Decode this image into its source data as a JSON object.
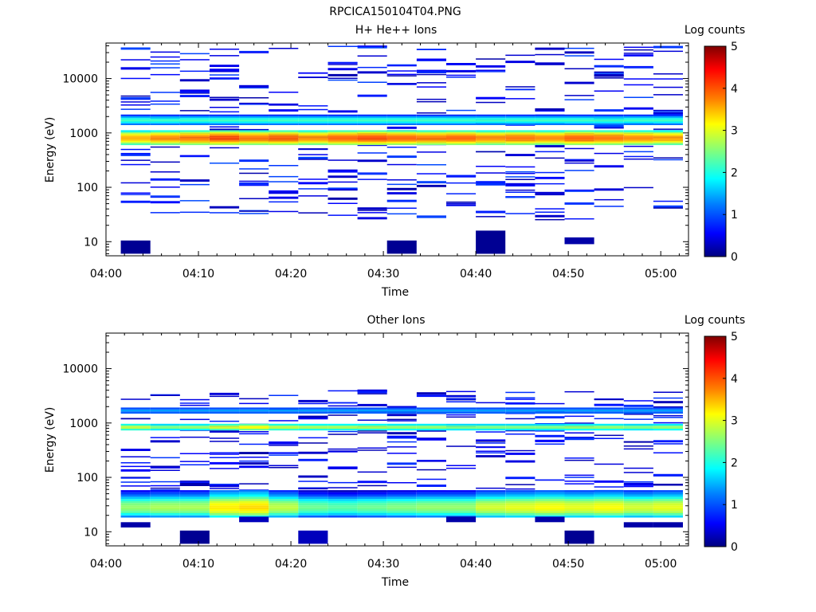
{
  "figure": {
    "title": "RPCICA150104T04.PNG"
  },
  "colormap": {
    "stops": [
      "#00007f",
      "#0000ff",
      "#007fff",
      "#00ffff",
      "#7fff7f",
      "#ffff00",
      "#ff7f00",
      "#ff0000",
      "#7f0000"
    ]
  },
  "chart_data": [
    {
      "type": "heatmap",
      "title": "H+ He++ Ions",
      "xlabel": "Time",
      "ylabel": "Energy (eV)",
      "colorbar_label": "Log counts",
      "colorbar_ticks": [
        "0",
        "1",
        "2",
        "3",
        "4",
        "5"
      ],
      "x_ticks": [
        "04:00",
        "04:10",
        "04:20",
        "04:30",
        "04:40",
        "04:50",
        "05:00"
      ],
      "y_ticks": [
        "10",
        "100",
        "1000",
        "10000"
      ],
      "y_scale": "log",
      "ylim": [
        5.5,
        45000
      ],
      "xlim_minutes": [
        0,
        63
      ],
      "clim": [
        0,
        5
      ],
      "time_bins_start_min": [
        1.6,
        4.8,
        8.0,
        11.2,
        14.4,
        17.6,
        20.8,
        24.0,
        27.2,
        30.4,
        33.6,
        36.8,
        40.0,
        43.2,
        46.4,
        49.6,
        52.8,
        56.0,
        59.2
      ],
      "time_bin_width_min": 3.2,
      "band": {
        "energies": [
          620,
          660,
          700,
          740,
          790,
          840,
          890,
          950,
          1010,
          1080
        ],
        "profile": [
          2.4,
          2.9,
          3.3,
          3.6,
          3.7,
          3.7,
          3.5,
          3.2,
          2.7,
          2.0
        ],
        "column_shift": [
          -0.2,
          0.0,
          0.1,
          0.3,
          0.1,
          0.2,
          0.0,
          0.2,
          0.3,
          0.2,
          0.1,
          0.2,
          0.0,
          0.1,
          0.0,
          0.2,
          0.1,
          0.0,
          -0.1
        ]
      },
      "secondary_band": {
        "energies": [
          1450,
          1560,
          1680,
          1800,
          1950,
          2100
        ],
        "profile": [
          1.2,
          1.8,
          2.2,
          2.0,
          1.5,
          0.9
        ]
      },
      "sparse": {
        "emin": 25,
        "emax": 40000,
        "count_per_bin": 22,
        "vmin": 0.2,
        "vmax": 1.0,
        "seed": 104
      },
      "blocks": [
        {
          "bin": 0,
          "e_lo": 6,
          "e_hi": 10.5,
          "v": 0.1
        },
        {
          "bin": 9,
          "e_lo": 6,
          "e_hi": 10.5,
          "v": 0.1
        },
        {
          "bin": 12,
          "e_lo": 6,
          "e_hi": 16,
          "v": 0.1
        },
        {
          "bin": 15,
          "e_lo": 9,
          "e_hi": 12,
          "v": 0.2
        }
      ]
    },
    {
      "type": "heatmap",
      "title": "Other Ions",
      "xlabel": "Time",
      "ylabel": "Energy (eV)",
      "colorbar_label": "Log counts",
      "colorbar_ticks": [
        "0",
        "1",
        "2",
        "3",
        "4",
        "5"
      ],
      "x_ticks": [
        "04:00",
        "04:10",
        "04:20",
        "04:30",
        "04:40",
        "04:50",
        "05:00"
      ],
      "y_ticks": [
        "10",
        "100",
        "1000",
        "10000"
      ],
      "y_scale": "log",
      "ylim": [
        5.5,
        45000
      ],
      "xlim_minutes": [
        0,
        63
      ],
      "clim": [
        0,
        5
      ],
      "time_bins_start_min": [
        1.6,
        4.8,
        8.0,
        11.2,
        14.4,
        17.6,
        20.8,
        24.0,
        27.2,
        30.4,
        33.6,
        36.8,
        40.0,
        43.2,
        46.4,
        49.6,
        52.8,
        56.0,
        59.2
      ],
      "time_bin_width_min": 3.2,
      "band": {
        "energies": [
          760,
          810,
          870,
          930
        ],
        "profile": [
          1.8,
          2.5,
          2.4,
          1.7
        ],
        "column_shift": [
          0.3,
          0.0,
          0.1,
          0.4,
          0.6,
          0.3,
          0.2,
          0.2,
          0.2,
          0.1,
          0.1,
          0.0,
          0.0,
          0.0,
          0.0,
          0.1,
          0.1,
          0.0,
          0.1
        ]
      },
      "secondary_band": {
        "energies": [
          1550,
          1700,
          1850
        ],
        "profile": [
          1.1,
          1.4,
          1.0
        ]
      },
      "low_band": {
        "energies": [
          19,
          21,
          23,
          25,
          27,
          29,
          32,
          35,
          38,
          42,
          46,
          51,
          56
        ],
        "profile": [
          1.3,
          1.9,
          2.3,
          2.5,
          2.6,
          2.6,
          2.5,
          2.3,
          2.0,
          1.6,
          1.2,
          0.9,
          0.6
        ],
        "column_shift": [
          0.0,
          0.1,
          0.1,
          0.6,
          0.7,
          0.2,
          -0.2,
          -0.3,
          -0.2,
          -0.1,
          0.0,
          0.0,
          0.3,
          0.4,
          0.5,
          0.4,
          0.5,
          0.3,
          0.4
        ]
      },
      "sparse": {
        "emin": 55,
        "emax": 4000,
        "count_per_bin": 14,
        "vmin": 0.2,
        "vmax": 0.9,
        "seed": 207
      },
      "blocks": [
        {
          "bin": 0,
          "e_lo": 12,
          "e_hi": 15,
          "v": 0.2
        },
        {
          "bin": 2,
          "e_lo": 6,
          "e_hi": 10.5,
          "v": 0.1
        },
        {
          "bin": 6,
          "e_lo": 6,
          "e_hi": 10.5,
          "v": 0.3
        },
        {
          "bin": 18,
          "e_lo": 12,
          "e_hi": 15,
          "v": 0.2
        },
        {
          "bin": 17,
          "e_lo": 12,
          "e_hi": 15,
          "v": 0.2
        },
        {
          "bin": 15,
          "e_lo": 6,
          "e_hi": 10.5,
          "v": 0.1
        },
        {
          "bin": 4,
          "e_lo": 15,
          "e_hi": 19,
          "v": 0.3
        },
        {
          "bin": 14,
          "e_lo": 15,
          "e_hi": 19,
          "v": 0.2
        },
        {
          "bin": 11,
          "e_lo": 15,
          "e_hi": 19,
          "v": 0.2
        }
      ]
    }
  ]
}
